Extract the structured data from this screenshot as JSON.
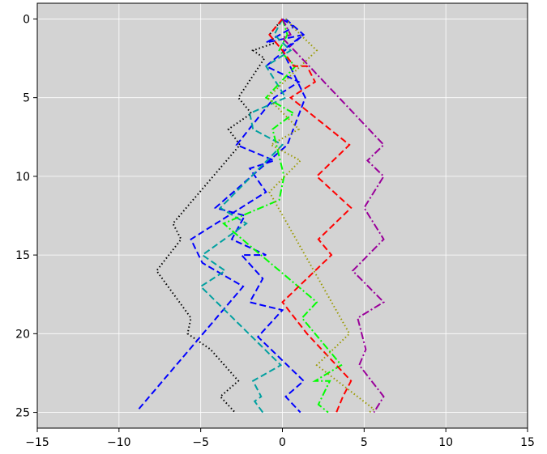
{
  "chart_data": {
    "type": "line",
    "title": "",
    "xlabel": "",
    "ylabel": "",
    "xlim": [
      -15,
      15
    ],
    "ylim": [
      26,
      -1
    ],
    "y_inverted": true,
    "grid": true,
    "legend": "none",
    "background_color": "#d3d3d3",
    "grid_color": "#ffffff",
    "x_ticks": [
      -15,
      -10,
      -5,
      0,
      5,
      10,
      15
    ],
    "x_tick_labels": [
      "−15",
      "−10",
      "−5",
      "0",
      "5",
      "10",
      "15"
    ],
    "y_ticks": [
      0,
      5,
      10,
      15,
      20,
      25
    ],
    "y_tick_labels": [
      "0",
      "5",
      "10",
      "15",
      "20",
      "25"
    ],
    "series": [
      {
        "color": "#000000",
        "style": "dotted",
        "points": [
          [
            0,
            0
          ],
          [
            -0.8,
            1
          ],
          [
            -0.4,
            1.5
          ],
          [
            -1.8,
            2
          ],
          [
            -1.1,
            2.5
          ],
          [
            -2.7,
            5
          ],
          [
            -1.9,
            6
          ],
          [
            -3.3,
            7
          ],
          [
            -2.6,
            8
          ],
          [
            -6.7,
            13
          ],
          [
            -6.2,
            14
          ],
          [
            -7.7,
            16
          ],
          [
            -5.6,
            19
          ],
          [
            -5.8,
            20
          ],
          [
            -4.4,
            21
          ],
          [
            -2.7,
            23
          ],
          [
            -3.8,
            24
          ],
          [
            -2.9,
            25
          ]
        ]
      },
      {
        "color": "#0000ff",
        "style": "dashed",
        "points": [
          [
            0,
            0
          ],
          [
            0.7,
            0.5
          ],
          [
            -1,
            1.5
          ],
          [
            1.3,
            1
          ],
          [
            -1,
            3
          ],
          [
            1,
            4
          ],
          [
            -0.5,
            5
          ],
          [
            -2.8,
            8
          ],
          [
            -0.5,
            9
          ],
          [
            -2,
            9.5
          ],
          [
            -1,
            11
          ],
          [
            -5.6,
            14
          ],
          [
            -4.9,
            15.5
          ],
          [
            -2.4,
            17
          ],
          [
            -8.8,
            24.8
          ]
        ]
      },
      {
        "color": "#0000ff",
        "style": "dashed",
        "points": [
          [
            0.2,
            0
          ],
          [
            1.3,
            1
          ],
          [
            0,
            2
          ],
          [
            1.4,
            5
          ],
          [
            0.3,
            8
          ],
          [
            -4.1,
            12
          ],
          [
            -2.3,
            12.5
          ],
          [
            -3.1,
            14
          ],
          [
            -1,
            15
          ],
          [
            -2.5,
            15
          ],
          [
            -1.2,
            16.5
          ],
          [
            -2,
            18
          ],
          [
            0,
            18.5
          ],
          [
            -1.5,
            20.2
          ],
          [
            1.3,
            23
          ],
          [
            0.2,
            24
          ],
          [
            1.1,
            25
          ]
        ]
      },
      {
        "color": "#00a0a0",
        "style": "dashed",
        "points": [
          [
            0,
            0
          ],
          [
            -0.5,
            1
          ],
          [
            0.5,
            2
          ],
          [
            -1,
            3
          ],
          [
            0.2,
            5
          ],
          [
            -2,
            6
          ],
          [
            -1.8,
            7
          ],
          [
            0,
            8
          ],
          [
            -3.8,
            12
          ],
          [
            -2.2,
            13
          ],
          [
            -4.9,
            15
          ],
          [
            -3.5,
            16
          ],
          [
            -5,
            17
          ],
          [
            -0.1,
            22
          ],
          [
            -1.8,
            23
          ],
          [
            -1.3,
            24
          ],
          [
            -1.7,
            24.3
          ],
          [
            -1.2,
            25
          ]
        ]
      },
      {
        "color": "#00ff00",
        "style": "dashdot",
        "points": [
          [
            0,
            0
          ],
          [
            0.3,
            1
          ],
          [
            -0.2,
            2
          ],
          [
            0.8,
            3
          ],
          [
            -1,
            5
          ],
          [
            0.7,
            6
          ],
          [
            -0.6,
            7
          ],
          [
            0.1,
            10
          ],
          [
            -0.2,
            11.5
          ],
          [
            -3.6,
            13
          ],
          [
            2.1,
            18
          ],
          [
            1.2,
            19
          ],
          [
            3.6,
            22
          ],
          [
            2,
            23
          ],
          [
            2.9,
            23
          ],
          [
            2.2,
            24.5
          ],
          [
            2.8,
            25
          ]
        ]
      },
      {
        "color": "#ff0000",
        "style": "dashed",
        "points": [
          [
            0,
            0
          ],
          [
            -0.8,
            1
          ],
          [
            0,
            2
          ],
          [
            0.7,
            3
          ],
          [
            1.5,
            3
          ],
          [
            2,
            4
          ],
          [
            0.5,
            5
          ],
          [
            4.1,
            8
          ],
          [
            2.1,
            10
          ],
          [
            4.2,
            12
          ],
          [
            2.2,
            14
          ],
          [
            3,
            15
          ],
          [
            0,
            18
          ],
          [
            1.5,
            20
          ],
          [
            4.2,
            23
          ],
          [
            3.7,
            24
          ],
          [
            3.3,
            25
          ]
        ]
      },
      {
        "color": "#9a009a",
        "style": "dashdot",
        "points": [
          [
            0,
            0
          ],
          [
            0.5,
            1
          ],
          [
            0,
            1.2
          ],
          [
            6.2,
            8
          ],
          [
            5.2,
            9
          ],
          [
            6.2,
            10
          ],
          [
            5,
            12
          ],
          [
            6.2,
            14
          ],
          [
            4.3,
            16
          ],
          [
            6.2,
            18
          ],
          [
            4.6,
            19
          ],
          [
            5.1,
            21
          ],
          [
            4.7,
            22
          ],
          [
            6.2,
            24
          ],
          [
            5.6,
            25
          ]
        ]
      },
      {
        "color": "#9a9a00",
        "style": "dotted",
        "points": [
          [
            0.2,
            0
          ],
          [
            1.1,
            1
          ],
          [
            2.1,
            2
          ],
          [
            -0.9,
            5
          ],
          [
            1,
            7
          ],
          [
            -0.7,
            8
          ],
          [
            1.1,
            9
          ],
          [
            -0.8,
            11
          ],
          [
            4.1,
            20
          ],
          [
            2.1,
            22
          ],
          [
            5.6,
            24.8
          ],
          [
            5.3,
            25
          ]
        ]
      }
    ]
  }
}
